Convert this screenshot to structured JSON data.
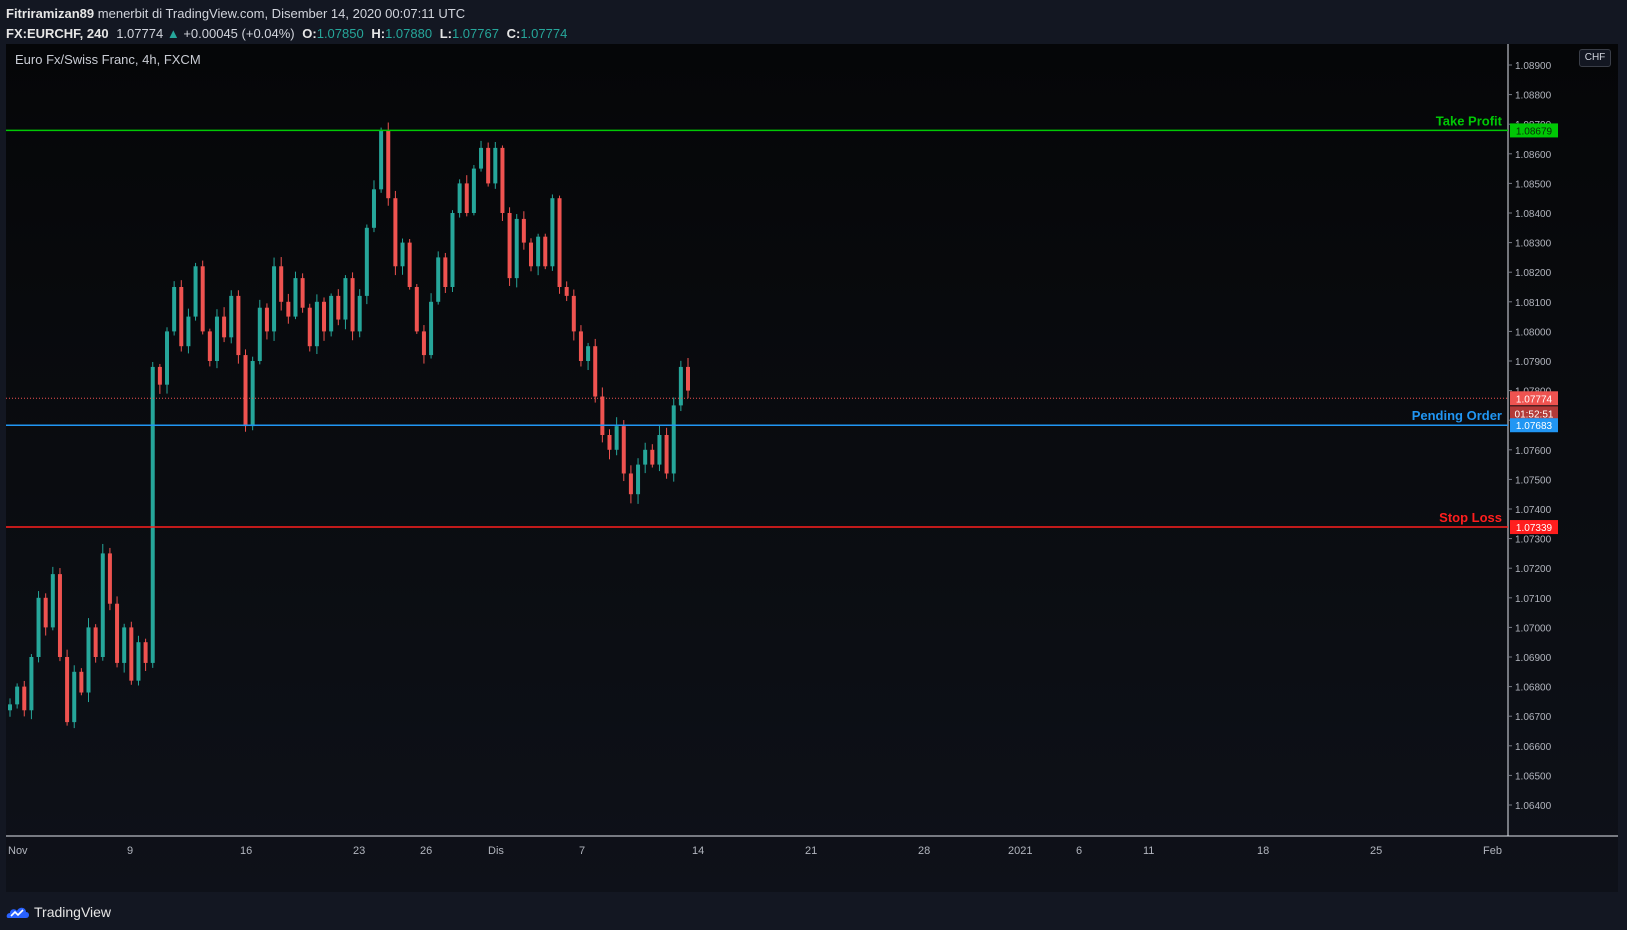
{
  "header": {
    "author": "Fitriramizan89",
    "published_text": "menerbit di TradingView.com, Disember 14, 2020 00:07:11 UTC",
    "symbol": "FX:EURCHF, 240",
    "last_price": "1.07774",
    "change_arrow": "▲",
    "change": "+0.00045 (+0.04%)",
    "o_label": "O:",
    "o_value": "1.07850",
    "h_label": "H:",
    "h_value": "1.07880",
    "l_label": "L:",
    "l_value": "1.07767",
    "c_label": "C:",
    "c_value": "1.07774"
  },
  "pane_legend": "Euro Fx/Swiss Franc, 4h, FXCM",
  "currency_badge": "CHF",
  "footer": {
    "brand": "TradingView",
    "logo_icon": "tradingview-cloud-icon"
  },
  "colors": {
    "up": "#26a69a",
    "down": "#ef5350",
    "take_profit": "#00c805",
    "pending": "#2196f3",
    "stop_loss": "#ff1e1e"
  },
  "chart_data": {
    "type": "candlestick",
    "symbol": "FX:EURCHF",
    "timeframe": "4h",
    "ylim": [
      1.064,
      1.089
    ],
    "y_ticks": [
      "1.08900",
      "1.08800",
      "1.08700",
      "1.08600",
      "1.08500",
      "1.08400",
      "1.08300",
      "1.08200",
      "1.08100",
      "1.08000",
      "1.07900",
      "1.07800",
      "1.07700",
      "1.07600",
      "1.07500",
      "1.07400",
      "1.07300",
      "1.07200",
      "1.07100",
      "1.07000",
      "1.06900",
      "1.06800",
      "1.06700",
      "1.06600",
      "1.06500",
      "1.06400"
    ],
    "x_ticks": [
      "Nov",
      "9",
      "16",
      "23",
      "26",
      "Dis",
      "7",
      "14",
      "21",
      "28",
      "2021",
      "6",
      "11",
      "18",
      "25",
      "Feb"
    ],
    "last_price": {
      "value": 1.07774,
      "label": "1.07774",
      "countdown": "01:52:51"
    },
    "horizontal_lines": [
      {
        "name": "Take Profit",
        "value": 1.08679,
        "label": "1.08679",
        "color": "#00c805"
      },
      {
        "name": "Pending Order",
        "value": 1.07683,
        "label": "1.07683",
        "color": "#2196f3"
      },
      {
        "name": "Stop Loss",
        "value": 1.07339,
        "label": "1.07339",
        "color": "#ff1e1e"
      }
    ],
    "price_path": [
      [
        1.0674,
        -2
      ],
      [
        1.068,
        3
      ],
      [
        1.0672,
        -3
      ],
      [
        1.069,
        3
      ],
      [
        1.071,
        3
      ],
      [
        1.07,
        -3
      ],
      [
        1.0718,
        3
      ],
      [
        1.069,
        -4
      ],
      [
        1.0668,
        -4
      ],
      [
        1.0685,
        3
      ],
      [
        1.0678,
        -3
      ],
      [
        1.07,
        3
      ],
      [
        1.069,
        -3
      ],
      [
        1.0725,
        3
      ],
      [
        1.0708,
        -3
      ],
      [
        1.0688,
        -3
      ],
      [
        1.07,
        3
      ],
      [
        1.0682,
        -3
      ],
      [
        1.0695,
        3
      ],
      [
        1.0688,
        -3
      ],
      [
        1.0788,
        0
      ],
      [
        1.0782,
        -2
      ],
      [
        1.08,
        3
      ],
      [
        1.0815,
        3
      ],
      [
        1.0795,
        -3
      ],
      [
        1.0805,
        3
      ],
      [
        1.0822,
        3
      ],
      [
        1.08,
        -3
      ],
      [
        1.079,
        -3
      ],
      [
        1.0805,
        3
      ],
      [
        1.0798,
        -3
      ],
      [
        1.0812,
        3
      ],
      [
        1.0792,
        -3
      ],
      [
        1.0768,
        -3
      ],
      [
        1.079,
        2
      ],
      [
        1.0808,
        3
      ],
      [
        1.08,
        -3
      ],
      [
        1.0822,
        3
      ],
      [
        1.081,
        -3
      ],
      [
        1.0805,
        -3
      ],
      [
        1.0818,
        3
      ],
      [
        1.0808,
        -3
      ],
      [
        1.0795,
        -3
      ],
      [
        1.081,
        3
      ],
      [
        1.08,
        -3
      ],
      [
        1.0812,
        3
      ],
      [
        1.0804,
        -3
      ],
      [
        1.0818,
        3
      ],
      [
        1.08,
        -3
      ],
      [
        1.0812,
        3
      ],
      [
        1.0835,
        3
      ],
      [
        1.0848,
        3
      ],
      [
        1.0868,
        3
      ],
      [
        1.0845,
        -3
      ],
      [
        1.0822,
        -3
      ],
      [
        1.083,
        3
      ],
      [
        1.0815,
        -3
      ],
      [
        1.08,
        -3
      ],
      [
        1.0792,
        -3
      ],
      [
        1.081,
        3
      ],
      [
        1.0825,
        3
      ],
      [
        1.0815,
        -3
      ],
      [
        1.084,
        3
      ],
      [
        1.085,
        3
      ],
      [
        1.084,
        -3
      ],
      [
        1.0855,
        3
      ],
      [
        1.0862,
        3
      ],
      [
        1.085,
        -3
      ],
      [
        1.0862,
        3
      ],
      [
        1.084,
        -3
      ],
      [
        1.0818,
        -3
      ],
      [
        1.0838,
        3
      ],
      [
        1.083,
        -3
      ],
      [
        1.0822,
        -3
      ],
      [
        1.0832,
        3
      ],
      [
        1.0822,
        -3
      ],
      [
        1.0845,
        3
      ],
      [
        1.0815,
        -3
      ],
      [
        1.0812,
        -3
      ],
      [
        1.08,
        -3
      ],
      [
        1.079,
        -3
      ],
      [
        1.0795,
        2
      ],
      [
        1.0778,
        -3
      ],
      [
        1.0765,
        -3
      ],
      [
        1.076,
        -2
      ],
      [
        1.0768,
        3
      ],
      [
        1.0752,
        -3
      ],
      [
        1.0745,
        -3
      ],
      [
        1.0755,
        3
      ],
      [
        1.076,
        3
      ],
      [
        1.0755,
        -2
      ],
      [
        1.0765,
        3
      ],
      [
        1.0752,
        -3
      ],
      [
        1.0775,
        3
      ],
      [
        1.0788,
        3
      ],
      [
        1.078,
        -3
      ]
    ]
  }
}
